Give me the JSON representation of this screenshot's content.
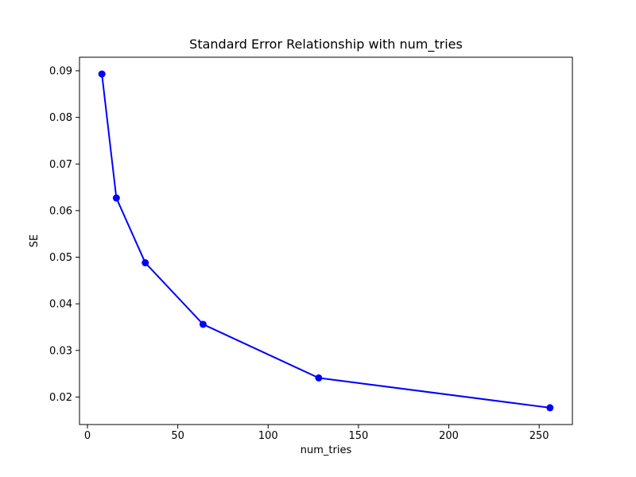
{
  "chart_data": {
    "type": "line",
    "title": "Standard Error Relationship with num_tries",
    "xlabel": "num_tries",
    "ylabel": "SE",
    "x": [
      8,
      16,
      32,
      64,
      128,
      256
    ],
    "y": [
      0.0893,
      0.0627,
      0.0488,
      0.0356,
      0.0241,
      0.0177
    ],
    "xlim": [
      -4.4,
      268.4
    ],
    "ylim": [
      0.0141,
      0.0929
    ],
    "xticks": [
      0,
      50,
      100,
      150,
      200,
      250
    ],
    "yticks": [
      0.02,
      0.03,
      0.04,
      0.05,
      0.06,
      0.07,
      0.08,
      0.09
    ],
    "y_tick_decimals": 2,
    "line_color": "#0000ff",
    "marker": "o",
    "grid": false,
    "legend_position": "none",
    "axes_color": "#000000",
    "background": "#ffffff"
  }
}
